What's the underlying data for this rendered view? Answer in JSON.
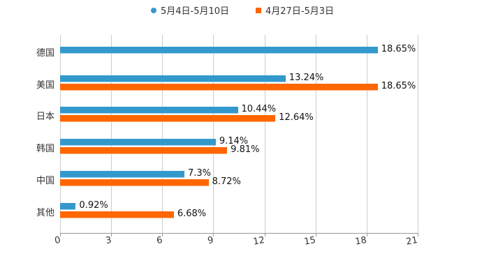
{
  "legend": [
    {
      "label": "5月4日-5月10日",
      "color": "#3399cc",
      "marker": "circle"
    },
    {
      "label": "4月27日-5月3日",
      "color": "#ff6600",
      "marker": "square"
    }
  ],
  "axis": {
    "ticks": [
      "0",
      "3",
      "6",
      "9",
      "12",
      "15",
      "18",
      "21"
    ]
  },
  "categories": [
    {
      "name": "德国",
      "s1_label": "18.65%",
      "s2_label": ""
    },
    {
      "name": "美国",
      "s1_label": "13.24%",
      "s2_label": "18.65%"
    },
    {
      "name": "日本",
      "s1_label": "10.44%",
      "s2_label": "12.64%"
    },
    {
      "name": "韩国",
      "s1_label": "9.14%",
      "s2_label": "9.81%"
    },
    {
      "name": "中国",
      "s1_label": "7.3%",
      "s2_label": "8.72%"
    },
    {
      "name": "其他",
      "s1_label": "0.92%",
      "s2_label": "6.68%"
    }
  ],
  "chart_data": {
    "type": "bar",
    "orientation": "horizontal",
    "title": "",
    "xlabel": "",
    "ylabel": "",
    "categories": [
      "德国",
      "美国",
      "日本",
      "韩国",
      "中国",
      "其他"
    ],
    "series": [
      {
        "name": "5月4日-5月10日",
        "color": "#3399cc",
        "values": [
          18.65,
          13.24,
          10.44,
          9.14,
          7.3,
          0.92
        ]
      },
      {
        "name": "4月27日-5月3日",
        "color": "#ff6600",
        "values": [
          null,
          18.65,
          12.64,
          9.81,
          8.72,
          6.68
        ]
      }
    ],
    "xlim": [
      0,
      21
    ],
    "xticks": [
      0,
      3,
      6,
      9,
      12,
      15,
      18,
      21
    ],
    "grid": "vertical",
    "legend_position": "top",
    "value_label_suffix": "%"
  }
}
